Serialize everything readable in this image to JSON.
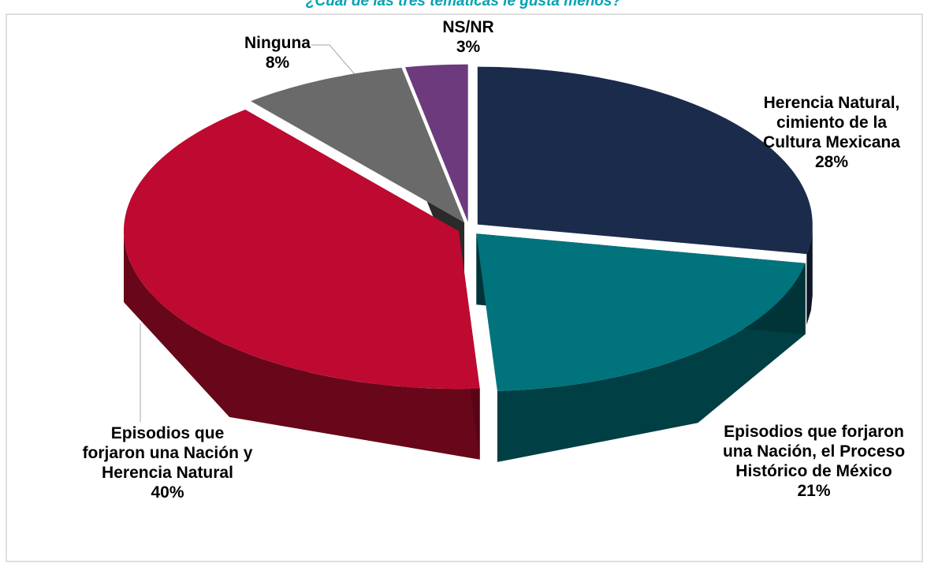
{
  "chart_data": {
    "type": "pie3d",
    "title": "¿Cuál de las tres temáticas le gusta menos?",
    "categories": [
      "Herencia Natural, cimiento de la Cultura Mexicana",
      "Episodios que forjaron una Nación, el Proceso Histórico de México",
      "Episodios que forjaron una Nación y Herencia Natural",
      "Ninguna",
      "NS/NR"
    ],
    "values": [
      28,
      21,
      40,
      8,
      3
    ],
    "value_labels": [
      "28%",
      "21%",
      "40%",
      "8%",
      "3%"
    ],
    "colors": [
      "#1b2b4b",
      "#00737c",
      "#be0a30",
      "#6a6a6a",
      "#6d3a7d"
    ]
  }
}
